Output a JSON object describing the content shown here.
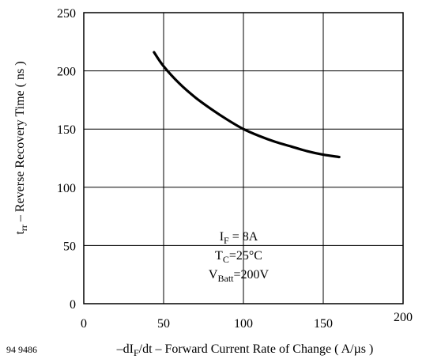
{
  "figure_id": "94 9486",
  "chart_data": {
    "type": "line",
    "title": "",
    "xlabel": {
      "prefix": "–dI",
      "sub": "F",
      "rest": "/dt – Forward Current Rate of Change ( A/µs )"
    },
    "ylabel": {
      "prefix": "t",
      "sub": "rr",
      "rest": " – Reverse Recovery Time ( ns )"
    },
    "xlim": [
      0,
      200
    ],
    "ylim": [
      0,
      250
    ],
    "x_ticks": [
      "0",
      "50",
      "100",
      "150",
      "200"
    ],
    "y_ticks": [
      "0",
      "50",
      "100",
      "150",
      "200",
      "250"
    ],
    "grid": true,
    "series": [
      {
        "x": [
          44,
          50,
          60,
          70,
          80,
          90,
          100,
          110,
          120,
          130,
          140,
          150,
          160
        ],
        "y": [
          216,
          204,
          189,
          177,
          167,
          158,
          150,
          144,
          139,
          135,
          131,
          128,
          126
        ]
      }
    ],
    "annotations": {
      "line1": {
        "main": "I",
        "sub": "F",
        "rest": " = 8A"
      },
      "line2": {
        "main": "T",
        "sub": "C",
        "rest": "=25°C"
      },
      "line3": {
        "main": "V",
        "sub": "Batt",
        "rest": "=200V"
      }
    }
  }
}
